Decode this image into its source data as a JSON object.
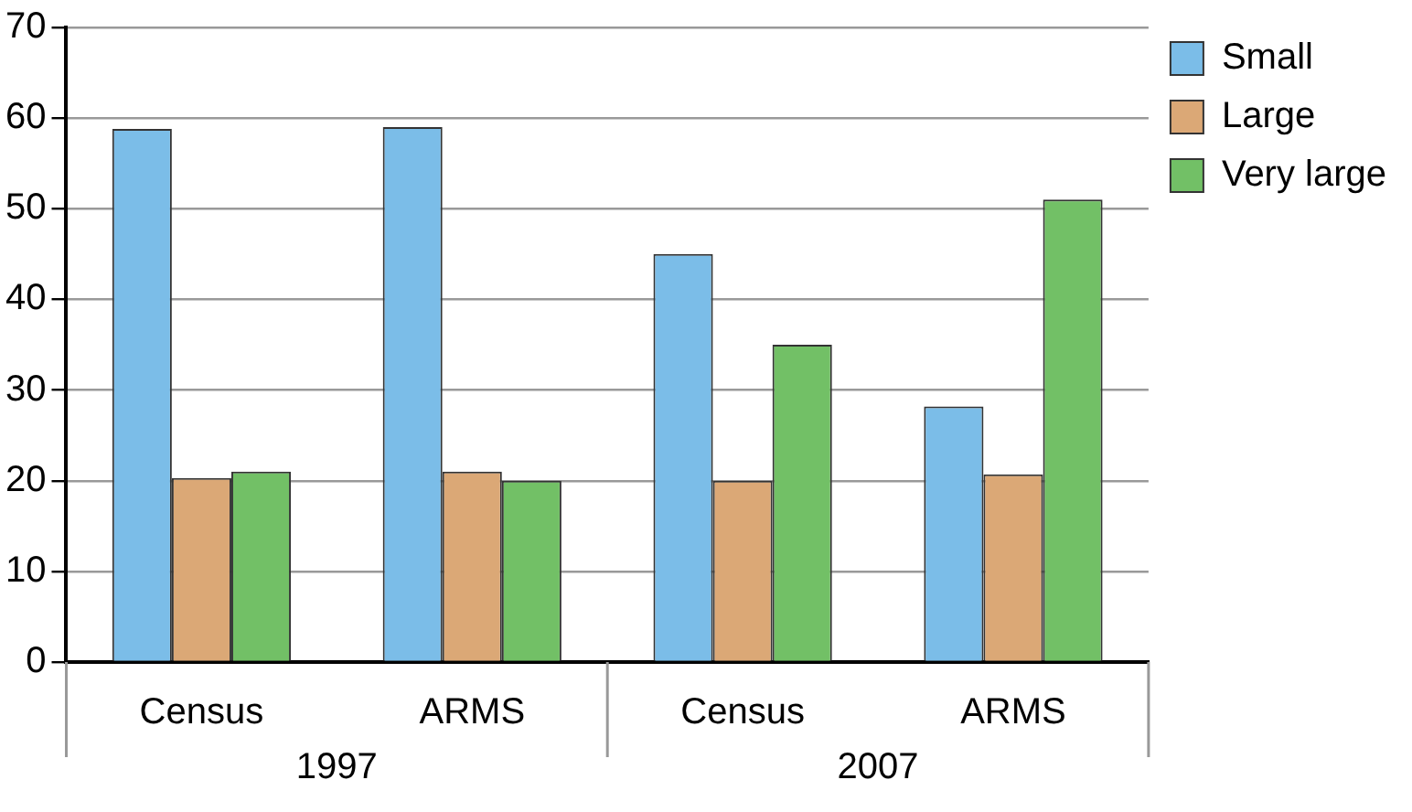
{
  "chart_data": {
    "type": "bar",
    "categories": [
      "Census",
      "ARMS",
      "Census",
      "ARMS"
    ],
    "series": [
      {
        "name": "Small",
        "color": "#7bbde8",
        "values": [
          58.8,
          59,
          45,
          28.2
        ]
      },
      {
        "name": "Large",
        "color": "#dba876",
        "values": [
          20.3,
          21,
          20,
          20.7
        ]
      },
      {
        "name": "Very large",
        "color": "#72c066",
        "values": [
          21,
          20,
          35,
          51
        ]
      }
    ],
    "ylim": [
      0,
      70
    ],
    "yticks": [
      0,
      10,
      20,
      30,
      40,
      50,
      60,
      70
    ],
    "grid": "y",
    "legend": "top right",
    "annotations": [
      "1997",
      "2007"
    ]
  }
}
